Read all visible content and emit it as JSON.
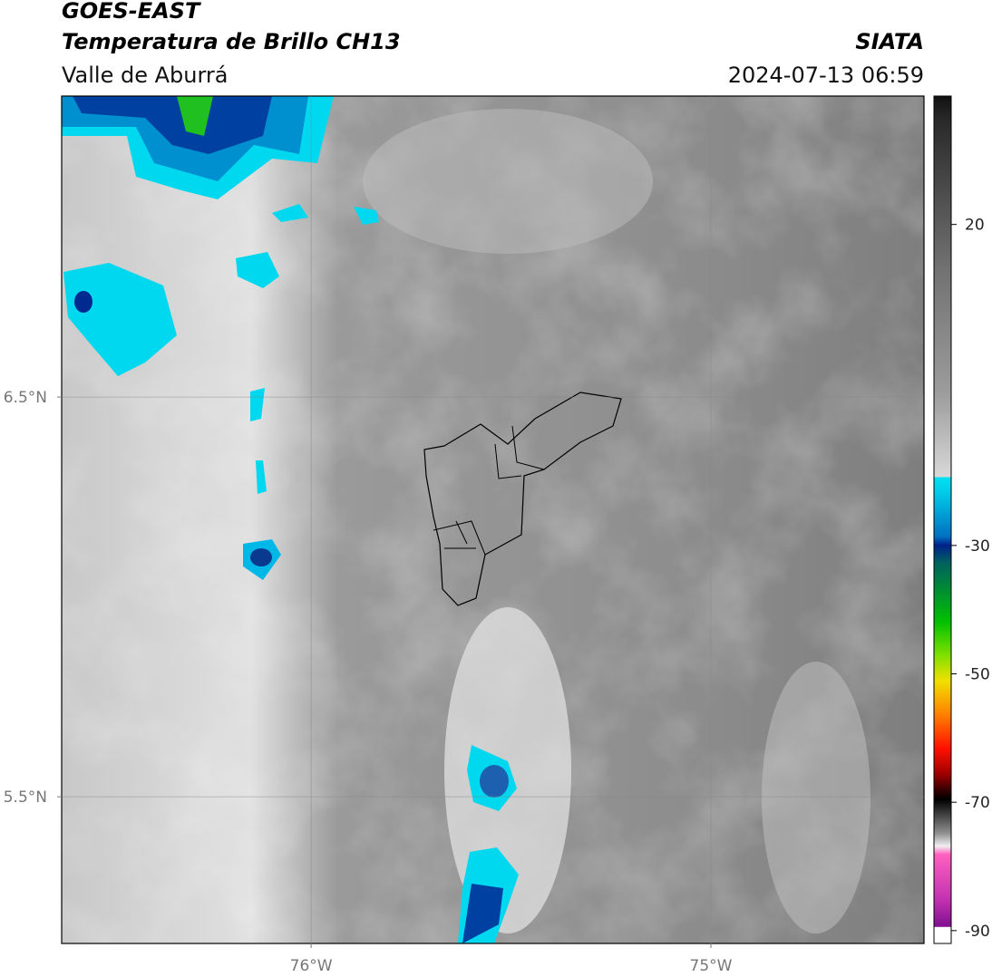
{
  "header": {
    "title": "GOES-EAST",
    "subtitle": "Temperatura de Brillo CH13",
    "region": "Valle de Aburrá",
    "source": "SIATA",
    "datetime": "2024-07-13 06:59"
  },
  "map": {
    "xlim": [
      -76.624,
      -74.467
    ],
    "ylim": [
      5.133,
      7.253
    ],
    "xticks": [
      {
        "value": -76,
        "label": "76°W"
      },
      {
        "value": -75,
        "label": "75°W"
      }
    ],
    "yticks": [
      {
        "value": 6.5,
        "label": "6.5°N"
      },
      {
        "value": 5.5,
        "label": "5.5°N"
      }
    ]
  },
  "colorbar": {
    "lim": [
      -92,
      40
    ],
    "ticks": [
      20,
      -30,
      -50,
      -70,
      -90
    ]
  }
}
